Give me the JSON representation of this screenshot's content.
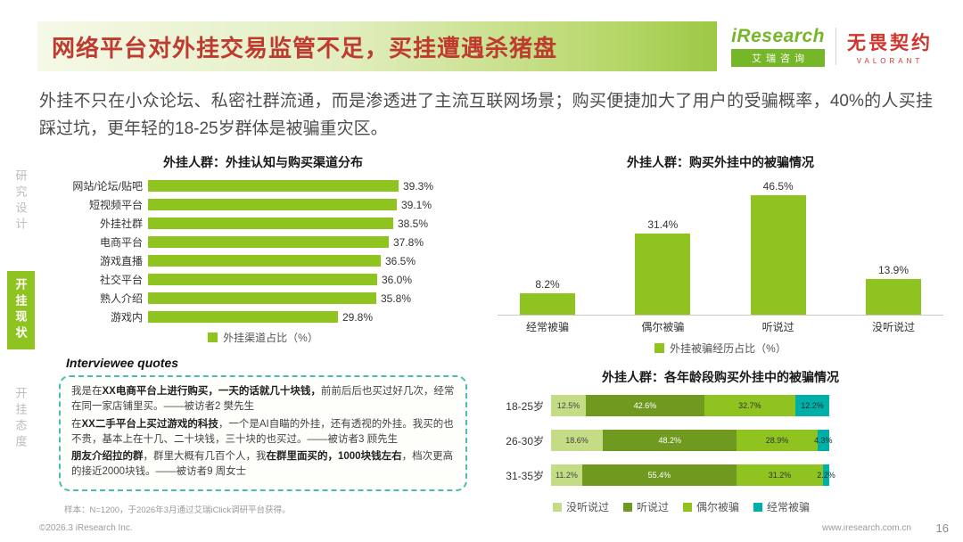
{
  "header": {
    "title": "网络平台对外挂交易监管不足，买挂遭遇杀猪盘",
    "iresearch_en": "iResearch",
    "iresearch_cn": "艾瑞咨询",
    "valorant_cn": "无畏契约",
    "valorant_en": "VALORANT"
  },
  "intro": "外挂不只在小众论坛、私密社群流通，而是渗透进了主流互联网场景；购买便捷加大了用户的受骗概率，40%的人买挂踩过坑，更年轻的18-25岁群体是被骗重灾区。",
  "sidebar": {
    "items": [
      {
        "label": "研究设计",
        "active": false
      },
      {
        "label": "开挂现状",
        "active": true
      },
      {
        "label": "开挂态度",
        "active": false
      }
    ]
  },
  "chart_data": [
    {
      "type": "bar",
      "orientation": "horizontal",
      "title": "外挂人群：外挂认知与购买渠道分布",
      "categories": [
        "网站/论坛/贴吧",
        "短视频平台",
        "外挂社群",
        "电商平台",
        "游戏直播",
        "社交平台",
        "熟人介绍",
        "游戏内"
      ],
      "values": [
        39.3,
        39.1,
        38.5,
        37.8,
        36.5,
        36.0,
        35.8,
        29.8
      ],
      "unit": "%",
      "xlim": [
        0,
        42
      ],
      "legend": [
        "外挂渠道占比（%）"
      ],
      "legend_position": "bottom"
    },
    {
      "type": "bar",
      "orientation": "vertical",
      "title": "外挂人群：购买外挂中的被骗情况",
      "categories": [
        "经常被骗",
        "偶尔被骗",
        "听说过",
        "没听说过"
      ],
      "values": [
        8.2,
        31.4,
        46.5,
        13.9
      ],
      "unit": "%",
      "ylim": [
        0,
        52
      ],
      "legend": [
        "外挂被骗经历占比（%）"
      ],
      "legend_position": "bottom"
    },
    {
      "type": "bar",
      "orientation": "horizontal-stacked",
      "title": "外挂人群：各年龄段购买外挂中的被骗情况",
      "categories": [
        "18-25岁",
        "26-30岁",
        "31-35岁"
      ],
      "series": [
        {
          "name": "没听说过",
          "values": [
            12.5,
            18.6,
            11.2
          ]
        },
        {
          "name": "听说过",
          "values": [
            42.6,
            48.2,
            55.4
          ]
        },
        {
          "name": "偶尔被骗",
          "values": [
            32.7,
            28.9,
            31.2
          ]
        },
        {
          "name": "经常被骗",
          "values": [
            12.2,
            4.3,
            2.2
          ]
        }
      ],
      "unit": "%",
      "xlim": [
        0,
        100
      ],
      "legend": [
        "没听说过",
        "听说过",
        "偶尔被骗",
        "经常被骗"
      ],
      "legend_position": "bottom"
    }
  ],
  "quotes": {
    "title": "Interviewee quotes",
    "items": [
      {
        "segments": [
          {
            "text": "我是在",
            "bold": false
          },
          {
            "text": "XX电商平台上进行购买，",
            "bold": true
          },
          {
            "text": "一天的话就几十块钱，",
            "bold": true
          },
          {
            "text": "前前后后也买过好几次，经常在同一家店铺里买。——被访者2 樊先生",
            "bold": false
          }
        ]
      },
      {
        "segments": [
          {
            "text": "在",
            "bold": false
          },
          {
            "text": "XX二手平台上买过游戏的科技",
            "bold": true
          },
          {
            "text": "，一个是AI自瞄的外挂，还有透视的外挂。我买的也不贵，基本上在十几、二十块钱，三十块的也买过。——被访者3 顾先生",
            "bold": false
          }
        ]
      },
      {
        "segments": [
          {
            "text": "朋友介绍拉的群",
            "bold": true
          },
          {
            "text": "，群里大概有几百个人，我",
            "bold": false
          },
          {
            "text": "在群里面买的，1000块钱左右",
            "bold": true
          },
          {
            "text": "，档次更高的接近2000块钱。——被访者9 周女士",
            "bold": false
          }
        ]
      }
    ]
  },
  "footer": {
    "note": "样本：N=1200，于2026年3月通过艾瑞iClick调研平台获得。",
    "copyright": "©2026.3 iResearch Inc.",
    "website": "www.iresearch.com.cn",
    "page_number": "16"
  },
  "colors": {
    "green": "#8fc31f",
    "green_dark": "#6f9a1f",
    "green_light": "#c3dc85",
    "teal": "#00b0a8",
    "title_red": "#bf3b2f"
  }
}
